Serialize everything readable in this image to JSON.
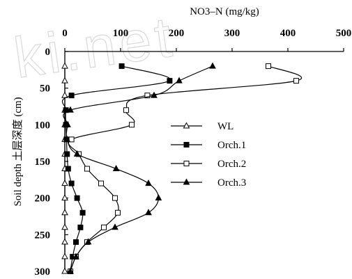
{
  "chart_data": {
    "type": "line",
    "xlabel": "NO3–N (mg/kg)",
    "ylabel": "Soil depth 土层深度 (cm)",
    "xlim": [
      0,
      500
    ],
    "ylim": [
      0,
      300
    ],
    "x_axis_position": "top",
    "y_axis_inverted": true,
    "x_ticks": [
      "0",
      "100",
      "200",
      "300",
      "400",
      "500"
    ],
    "y_ticks": [
      "0",
      "50",
      "100",
      "150",
      "200",
      "250",
      "300"
    ],
    "grid": false,
    "legend_position": "middle-right",
    "series": [
      {
        "name": "WL",
        "marker": "open-triangle",
        "points": [
          [
            0,
            20
          ],
          [
            0,
            40
          ],
          [
            0,
            60
          ],
          [
            0,
            80
          ],
          [
            0,
            100
          ],
          [
            0,
            120
          ],
          [
            0,
            140
          ],
          [
            0,
            160
          ],
          [
            0,
            180
          ],
          [
            0,
            200
          ],
          [
            0,
            220
          ],
          [
            0,
            240
          ],
          [
            0,
            260
          ],
          [
            0,
            280
          ],
          [
            0,
            300
          ]
        ]
      },
      {
        "name": "Orch.1",
        "marker": "filled-square",
        "points": [
          [
            102,
            20
          ],
          [
            188,
            40
          ],
          [
            12,
            60
          ],
          [
            2,
            80
          ],
          [
            2,
            100
          ],
          [
            3,
            120
          ],
          [
            4,
            140
          ],
          [
            6,
            160
          ],
          [
            12,
            180
          ],
          [
            22,
            200
          ],
          [
            32,
            220
          ],
          [
            28,
            240
          ],
          [
            20,
            260
          ],
          [
            14,
            280
          ],
          [
            10,
            300
          ]
        ]
      },
      {
        "name": "Orch.2",
        "marker": "open-square",
        "points": [
          [
            365,
            20
          ],
          [
            415,
            40
          ],
          [
            148,
            60
          ],
          [
            110,
            80
          ],
          [
            120,
            100
          ],
          [
            12,
            120
          ],
          [
            25,
            140
          ],
          [
            40,
            160
          ],
          [
            65,
            180
          ],
          [
            90,
            200
          ],
          [
            95,
            220
          ],
          [
            70,
            240
          ],
          [
            40,
            260
          ],
          [
            20,
            280
          ],
          [
            10,
            300
          ]
        ]
      },
      {
        "name": "Orch.3",
        "marker": "filled-triangle",
        "points": [
          [
            265,
            20
          ],
          [
            205,
            40
          ],
          [
            160,
            60
          ],
          [
            10,
            80
          ],
          [
            5,
            100
          ],
          [
            4,
            120
          ],
          [
            22,
            140
          ],
          [
            92,
            160
          ],
          [
            150,
            180
          ],
          [
            168,
            200
          ],
          [
            150,
            220
          ],
          [
            90,
            240
          ],
          [
            42,
            260
          ],
          [
            20,
            280
          ],
          [
            10,
            300
          ]
        ]
      }
    ]
  },
  "watermark": "ki.net",
  "colors": {
    "line": "#000000",
    "background": "#ffffff"
  }
}
